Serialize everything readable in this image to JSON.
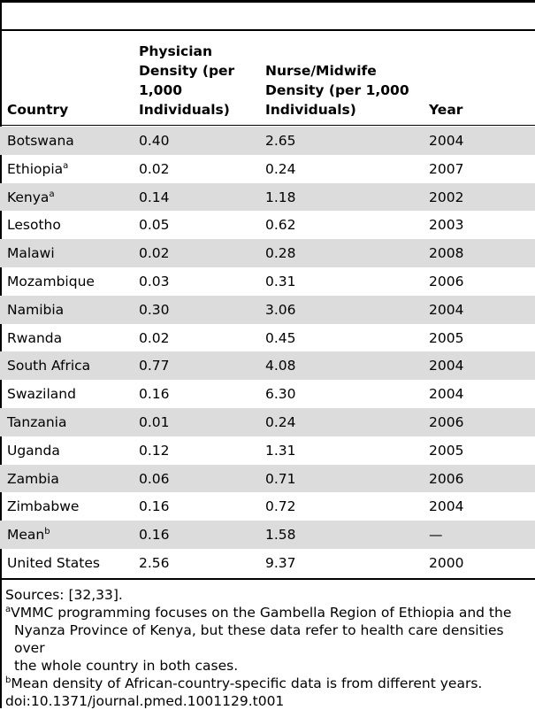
{
  "table": {
    "headers": [
      "Country",
      "Physician Density (per 1,000 Individuals)",
      "Nurse/Midwife Density (per 1,000 Individuals)",
      "Year"
    ],
    "header_lines": {
      "col0": [
        "Country"
      ],
      "col1": [
        "Physician",
        "Density (per",
        "1,000",
        "Individuals)"
      ],
      "col2": [
        "Nurse/Midwife",
        "Density (per 1,000",
        "Individuals)"
      ],
      "col3": [
        "Year"
      ]
    },
    "rows": [
      {
        "country": "Botswana",
        "sup": "",
        "physician": "0.40",
        "nurse": "2.65",
        "year": "2004"
      },
      {
        "country": "Ethiopia",
        "sup": "a",
        "physician": "0.02",
        "nurse": "0.24",
        "year": "2007"
      },
      {
        "country": "Kenya",
        "sup": "a",
        "physician": "0.14",
        "nurse": "1.18",
        "year": "2002"
      },
      {
        "country": "Lesotho",
        "sup": "",
        "physician": "0.05",
        "nurse": "0.62",
        "year": "2003"
      },
      {
        "country": "Malawi",
        "sup": "",
        "physician": "0.02",
        "nurse": "0.28",
        "year": "2008"
      },
      {
        "country": "Mozambique",
        "sup": "",
        "physician": "0.03",
        "nurse": "0.31",
        "year": "2006"
      },
      {
        "country": "Namibia",
        "sup": "",
        "physician": "0.30",
        "nurse": "3.06",
        "year": "2004"
      },
      {
        "country": "Rwanda",
        "sup": "",
        "physician": "0.02",
        "nurse": "0.45",
        "year": "2005"
      },
      {
        "country": "South Africa",
        "sup": "",
        "physician": "0.77",
        "nurse": "4.08",
        "year": "2004"
      },
      {
        "country": "Swaziland",
        "sup": "",
        "physician": "0.16",
        "nurse": "6.30",
        "year": "2004"
      },
      {
        "country": "Tanzania",
        "sup": "",
        "physician": "0.01",
        "nurse": "0.24",
        "year": "2006"
      },
      {
        "country": "Uganda",
        "sup": "",
        "physician": "0.12",
        "nurse": "1.31",
        "year": "2005"
      },
      {
        "country": "Zambia",
        "sup": "",
        "physician": "0.06",
        "nurse": "0.71",
        "year": "2006"
      },
      {
        "country": "Zimbabwe",
        "sup": "",
        "physician": "0.16",
        "nurse": "0.72",
        "year": "2004"
      },
      {
        "country": "Mean",
        "sup": "b",
        "physician": "0.16",
        "nurse": "1.58",
        "year": "—"
      },
      {
        "country": "United States",
        "sup": "",
        "physician": "2.56",
        "nurse": "9.37",
        "year": "2000"
      }
    ]
  },
  "notes": {
    "sources": "Sources: [32,33].",
    "note_a_mark": "a",
    "note_a_lines": [
      "VMMC programming focuses on the Gambella Region of Ethiopia and the",
      "Nyanza Province of Kenya, but these data refer to health care densities over",
      "the whole country in both cases."
    ],
    "note_b_mark": "b",
    "note_b": "Mean density of African-country-specific data is from different years.",
    "doi": "doi:10.1371/journal.pmed.1001129.t001"
  },
  "colors": {
    "shaded_row": "#dcdcdc",
    "rule": "#000000"
  }
}
